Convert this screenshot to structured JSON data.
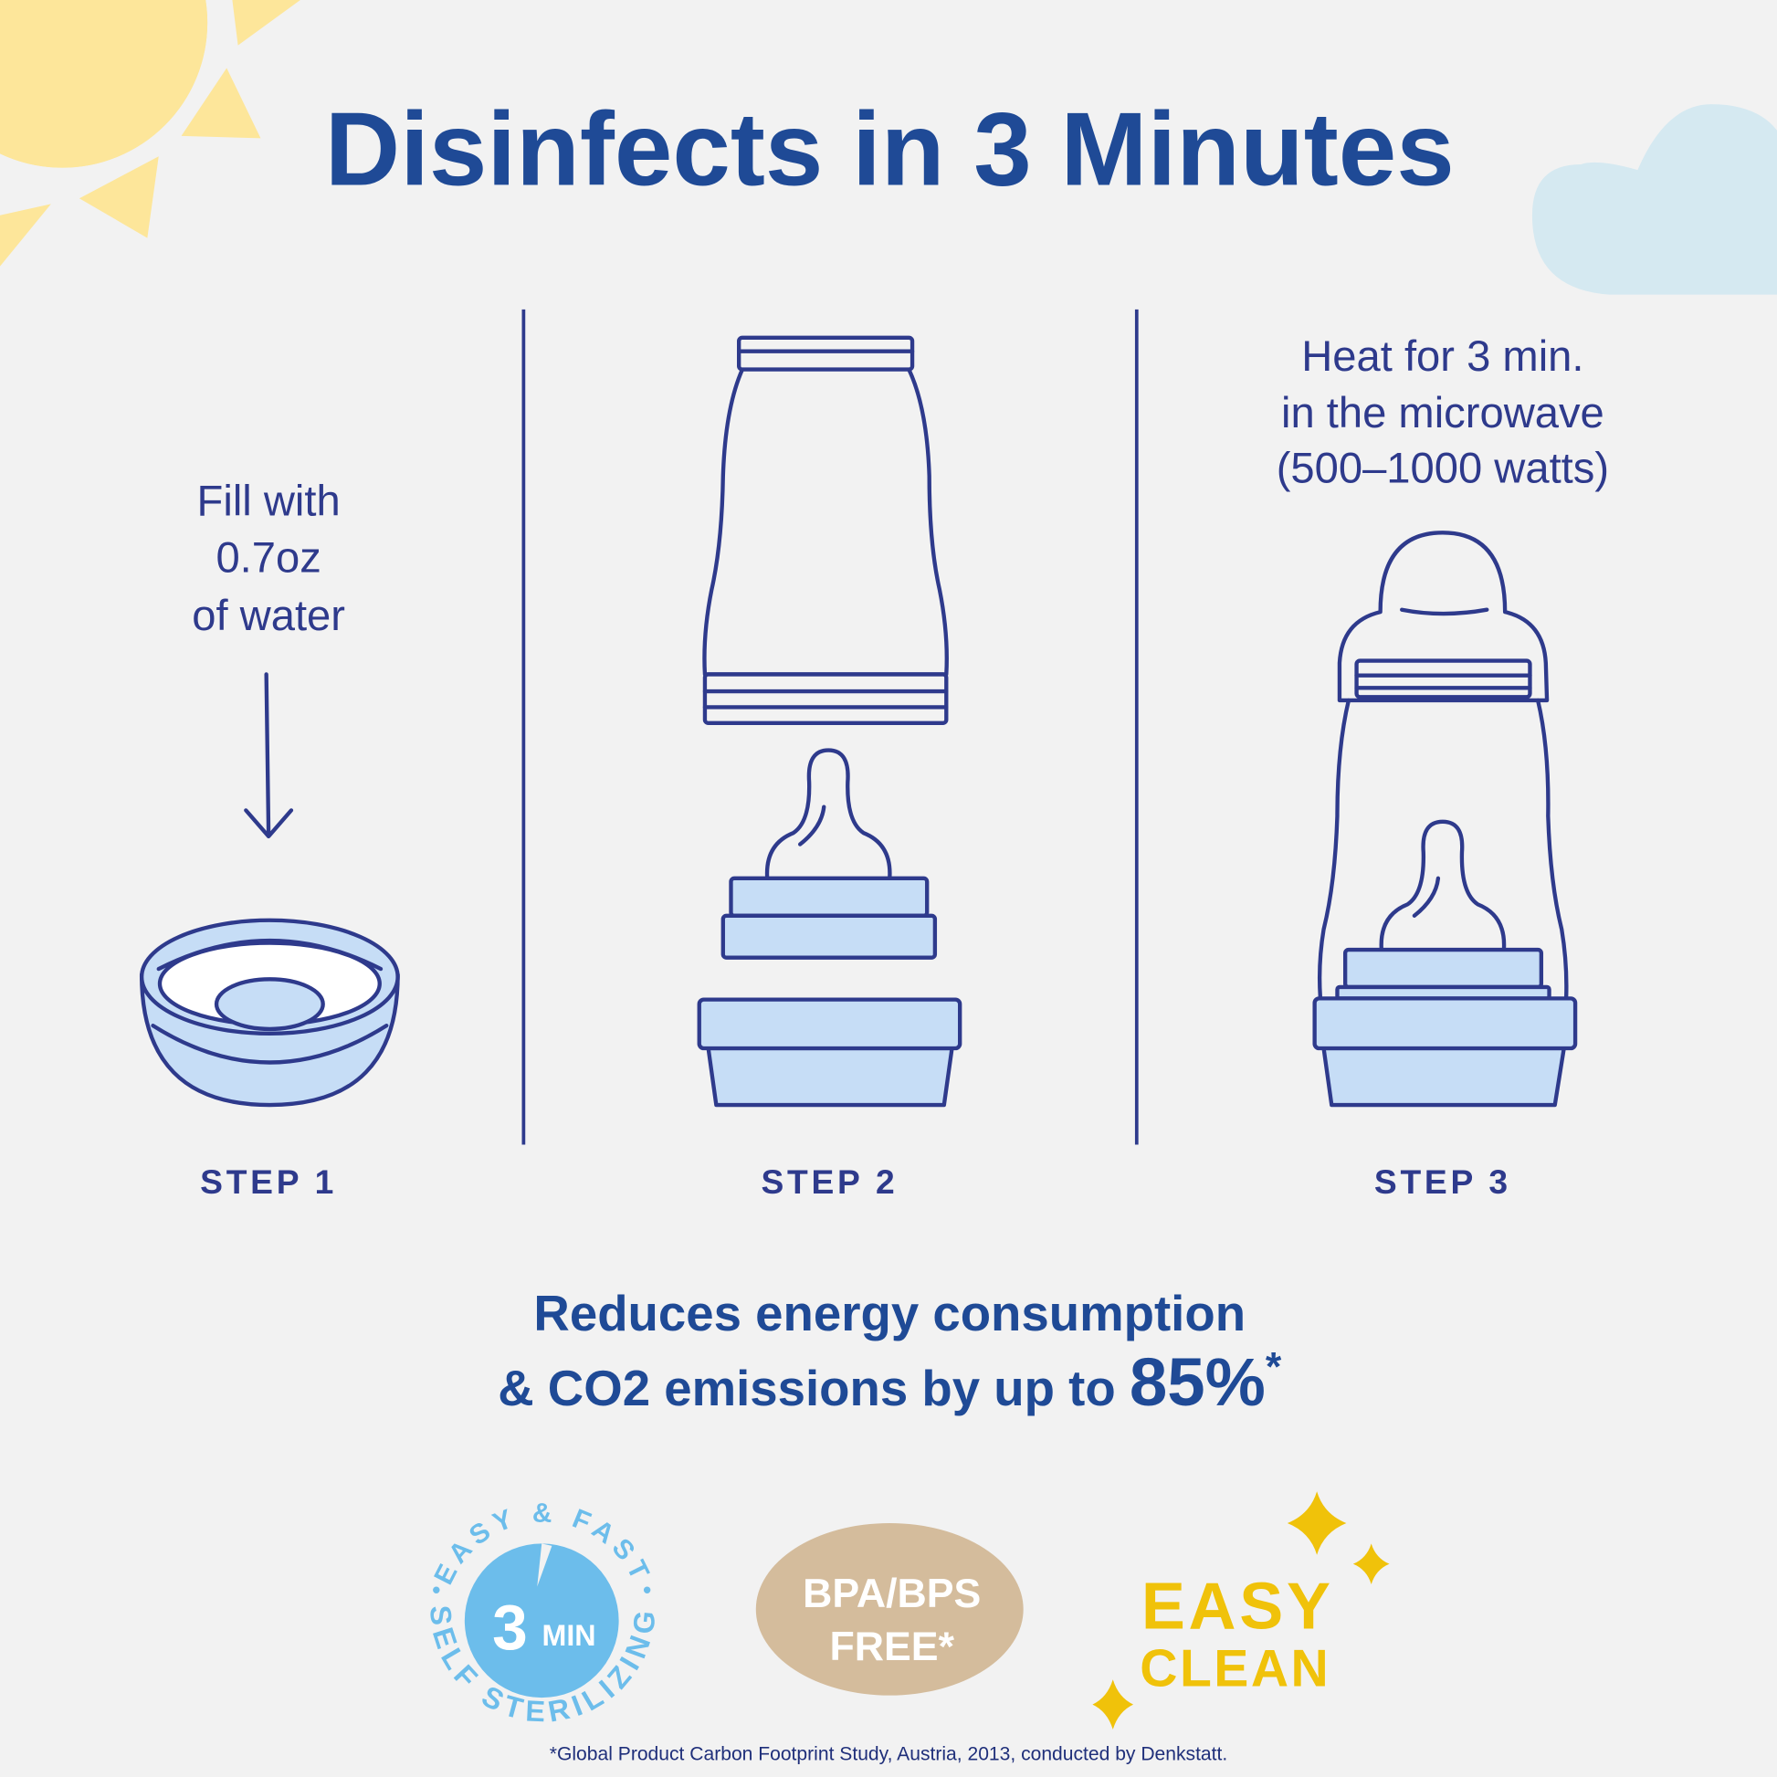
{
  "title": "Disinfects in 3 Minutes",
  "steps": [
    {
      "label": "STEP 1",
      "text": [
        "Fill with",
        "0.7oz",
        "of water"
      ]
    },
    {
      "label": "STEP 2",
      "text": []
    },
    {
      "label": "STEP 3",
      "text": [
        "Heat for 3 min.",
        "in the microwave",
        "(500–1000 watts)"
      ]
    }
  ],
  "claim": {
    "line1": "Reduces energy consumption",
    "line2": "& CO2 emissions by up to ",
    "highlight": "85%",
    "mark": "*"
  },
  "badges": {
    "sterilizing": {
      "top": "EASY & FAST",
      "bottom": "SELF STERILIZING",
      "number": "3",
      "unit": "MIN"
    },
    "bpa": {
      "line1": "BPA/BPS",
      "line2": "FREE*"
    },
    "clean": {
      "line1": "EASY",
      "line2": "CLEAN"
    }
  },
  "footnote": "*Global Product Carbon Footprint Study, Austria, 2013, conducted by Denkstatt.",
  "colors": {
    "title": "#1f4a96",
    "line": "#2e3a8c",
    "fill": "#c6ddf6",
    "sun": "#fde69a",
    "cloud": "#d5e9f1",
    "badge_blue": "#6cbdeb",
    "badge_beige": "#d4bc9c",
    "yellow": "#f0c20a"
  }
}
